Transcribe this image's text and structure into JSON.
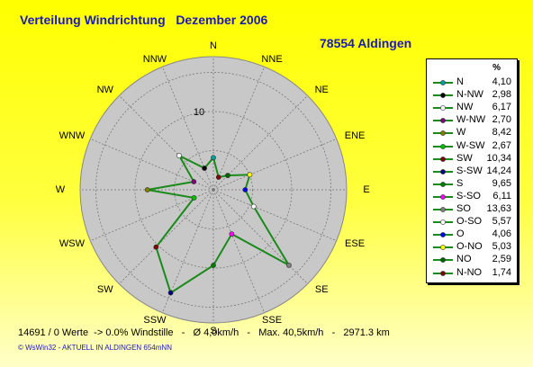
{
  "title": "Verteilung Windrichtung   Dezember 2006",
  "station": "78554 Aldingen",
  "legend_header": "%",
  "ring_label": "10",
  "stats": "14691 / 0 Werte  -> 0.0% Windstille   -   Ø 4,0km/h   -   Max. 40,5km/h   -   2971.3 km",
  "footer": "© WsWin32  -  AKTUELL IN ALDINGEN 654mNN",
  "colors": {
    "line": "#1a8a1a",
    "disk": "#c8c8c8",
    "title": "#1a1ab4"
  },
  "chart_data": {
    "type": "radar",
    "title": "Verteilung Windrichtung   Dezember 2006",
    "unit": "%",
    "rmax": 17,
    "rings": [
      5,
      10,
      15
    ],
    "directions": [
      {
        "name": "N",
        "value": 4.1,
        "display": "4,10",
        "color": "#00a0a0"
      },
      {
        "name": "N-NW",
        "value": 2.98,
        "display": "2,98",
        "color": "#000000"
      },
      {
        "name": "NW",
        "value": 6.17,
        "display": "6,17",
        "color": "#ffffff"
      },
      {
        "name": "W-NW",
        "value": 2.7,
        "display": "2,70",
        "color": "#800080"
      },
      {
        "name": "W",
        "value": 8.42,
        "display": "8,42",
        "color": "#808000"
      },
      {
        "name": "W-SW",
        "value": 2.67,
        "display": "2,67",
        "color": "#00c000"
      },
      {
        "name": "SW",
        "value": 10.34,
        "display": "10,34",
        "color": "#800000"
      },
      {
        "name": "S-SW",
        "value": 14.24,
        "display": "14,24",
        "color": "#000080"
      },
      {
        "name": "S",
        "value": 9.65,
        "display": "9,65",
        "color": "#008000"
      },
      {
        "name": "S-SO",
        "value": 6.11,
        "display": "6,11",
        "color": "#ff00ff"
      },
      {
        "name": "SO",
        "value": 13.63,
        "display": "13,63",
        "color": "#808080"
      },
      {
        "name": "O-SO",
        "value": 5.57,
        "display": "5,57",
        "color": "#ffffff"
      },
      {
        "name": "O",
        "value": 4.06,
        "display": "4,06",
        "color": "#0000ff"
      },
      {
        "name": "O-NO",
        "value": 5.03,
        "display": "5,03",
        "color": "#ffff00"
      },
      {
        "name": "NO",
        "value": 2.59,
        "display": "2,59",
        "color": "#006400"
      },
      {
        "name": "N-NO",
        "value": 1.74,
        "display": "1,74",
        "color": "#800000"
      }
    ],
    "compass_labels": [
      "N",
      "NNE",
      "NE",
      "ENE",
      "E",
      "ESE",
      "SE",
      "SSE",
      "S",
      "SSW",
      "SW",
      "WSW",
      "W",
      "WNW",
      "NW",
      "NNW"
    ]
  }
}
